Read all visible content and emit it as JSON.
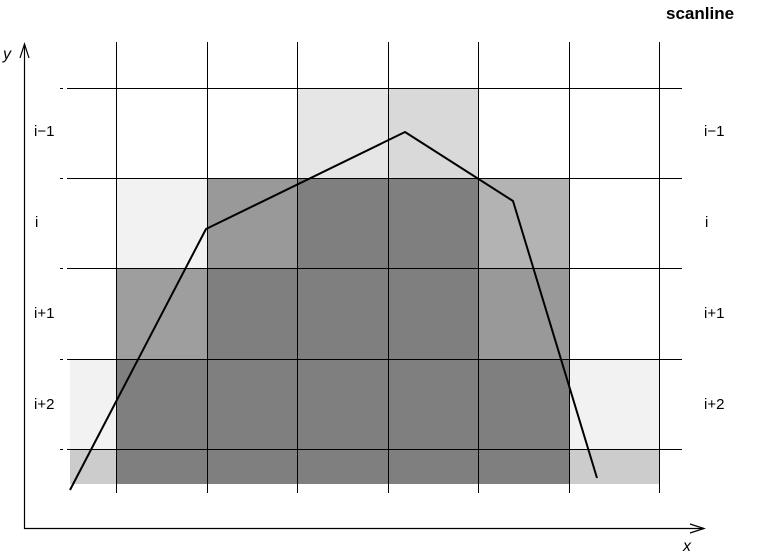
{
  "title": "scanline",
  "axes": {
    "x_label": "x",
    "y_label": "y"
  },
  "row_labels": [
    "i−1",
    "i",
    "i+1",
    "i+2"
  ],
  "colors": {
    "grid": "#000000",
    "polygon": "#000000",
    "shades": [
      "#f2f2f2",
      "#e6e6e6",
      "#d9d9d9",
      "#cccccc",
      "#b3b3b3",
      "#9e9e9e",
      "#999999",
      "#7f7f7f"
    ]
  }
}
